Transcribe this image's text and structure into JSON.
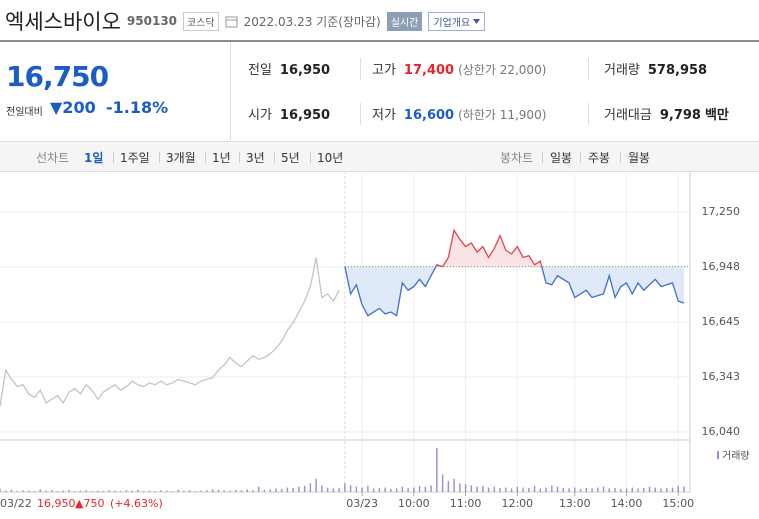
{
  "header": {
    "name": "엑세스바이오",
    "code": "950130",
    "market": "코스닥",
    "date": "2022.03.23 기준(장마감)",
    "realtime": "실시간",
    "dropdown": "기업개요"
  },
  "quote": {
    "price": "16,750",
    "change_label": "전일대비",
    "change": "▼200",
    "rate": "-1.18%"
  },
  "stats": [
    [
      {
        "label": "전일",
        "value": "16,950"
      },
      {
        "label": "고가",
        "value": "17,400",
        "note": "(상한가 22,000)"
      },
      {
        "label": "거래량",
        "value": "578,958"
      }
    ],
    [
      {
        "label": "시가",
        "value": "16,950"
      },
      {
        "label": "저가",
        "value": "16,600",
        "note": "(하한가 11,900)"
      },
      {
        "label": "거래대금",
        "value": "9,798",
        "unit": "백만"
      }
    ]
  ],
  "tabs": {
    "line_label": "선차트",
    "periods": [
      "1일",
      "1주일",
      "3개월",
      "1년",
      "3년",
      "5년",
      "10년"
    ],
    "selected": 0,
    "candle_label": "봉차트",
    "candles": [
      "일봉",
      "주봉",
      "월봉"
    ]
  },
  "footer": {
    "date": "03/22",
    "price": "16,950",
    "change": "▲750",
    "rate": "(+4.63%)"
  },
  "chart_data": {
    "type": "line",
    "categories": [
      null,
      null,
      null,
      null,
      null,
      null,
      null,
      null,
      null,
      null,
      null,
      null,
      null,
      null,
      null,
      null,
      null,
      null,
      null,
      null,
      null,
      null,
      null,
      null,
      null,
      null,
      null,
      null,
      null,
      null,
      null,
      null,
      null,
      null,
      null,
      null,
      null,
      null,
      null,
      null,
      null,
      null,
      null,
      null,
      null,
      null,
      null,
      null,
      null,
      null,
      null,
      null,
      null,
      null,
      null,
      null,
      null,
      null,
      null,
      null,
      null,
      null,
      null,
      "03/23",
      null,
      null,
      null,
      null,
      null,
      null,
      null,
      null,
      "10:00",
      null,
      null,
      null,
      null,
      null,
      null,
      null,
      null,
      "11:00",
      null,
      null,
      null,
      null,
      null,
      null,
      null,
      null,
      "12:00",
      null,
      null,
      null,
      null,
      null,
      null,
      null,
      null,
      null,
      "13:00",
      null,
      null,
      null,
      null,
      null,
      null,
      null,
      null,
      "14:00",
      null,
      null,
      null,
      null,
      null,
      null,
      null,
      null,
      "15:00",
      null
    ],
    "series": [
      {
        "color": "#c4c4c4",
        "values": [
          16180,
          16380,
          16330,
          16290,
          16300,
          16250,
          16230,
          16270,
          16200,
          16220,
          16240,
          16200,
          16260,
          16280,
          16250,
          16300,
          16270,
          16220,
          16260,
          16280,
          16300,
          16270,
          16290,
          16320,
          16300,
          16290,
          16310,
          16300,
          16320,
          16300,
          16310,
          16330,
          16320,
          16310,
          16300,
          16320,
          16330,
          16340,
          16380,
          16410,
          16450,
          16420,
          16400,
          16430,
          16460,
          16440,
          16450,
          16470,
          16500,
          16540,
          16600,
          16640,
          16700,
          16760,
          16840,
          17000,
          16780,
          16800,
          16760,
          16820,
          null,
          null,
          null,
          null,
          null,
          null,
          null,
          null,
          null,
          null,
          null,
          null,
          null,
          null,
          null,
          null,
          null,
          null,
          null,
          null,
          null,
          null,
          null,
          null,
          null,
          null,
          null,
          null,
          null,
          null,
          null,
          null,
          null,
          null,
          null,
          null,
          null,
          null,
          null,
          null,
          null,
          null,
          null,
          null,
          null,
          null,
          null,
          null,
          null,
          null,
          null,
          null,
          null,
          null,
          null,
          null,
          null,
          null,
          null,
          null
        ]
      },
      {
        "color": "#3c6fd1",
        "up_color": "#e8424c",
        "up_fill": "#fbe4e7",
        "down_fill": "#dfe9f8",
        "values": [
          null,
          null,
          null,
          null,
          null,
          null,
          null,
          null,
          null,
          null,
          null,
          null,
          null,
          null,
          null,
          null,
          null,
          null,
          null,
          null,
          null,
          null,
          null,
          null,
          null,
          null,
          null,
          null,
          null,
          null,
          null,
          null,
          null,
          null,
          null,
          null,
          null,
          null,
          null,
          null,
          null,
          null,
          null,
          null,
          null,
          null,
          null,
          null,
          null,
          null,
          null,
          null,
          null,
          null,
          null,
          null,
          null,
          null,
          null,
          null,
          16950,
          16800,
          16850,
          16740,
          16680,
          16700,
          16720,
          16690,
          16700,
          16680,
          16860,
          16820,
          16840,
          16880,
          16840,
          16900,
          16960,
          16950,
          17000,
          17150,
          17100,
          17060,
          17080,
          17030,
          17060,
          17000,
          17050,
          17120,
          17040,
          17020,
          17060,
          17000,
          17010,
          16960,
          16980,
          16860,
          16850,
          16900,
          16880,
          16860,
          16780,
          16800,
          16820,
          16780,
          16790,
          16800,
          16900,
          16780,
          16840,
          16860,
          16800,
          16860,
          16820,
          16850,
          16880,
          16840,
          16850,
          16860,
          16760,
          16750
        ]
      }
    ],
    "reference": 16950,
    "volume": {
      "label": "거래량",
      "color": "#9a8fc8",
      "values": [
        8,
        3,
        5,
        2,
        4,
        3,
        2,
        6,
        3,
        4,
        2,
        3,
        5,
        2,
        3,
        4,
        2,
        3,
        2,
        4,
        3,
        2,
        4,
        3,
        5,
        2,
        3,
        2,
        4,
        3,
        2,
        5,
        3,
        4,
        2,
        3,
        4,
        6,
        5,
        4,
        3,
        5,
        4,
        6,
        4,
        12,
        5,
        6,
        8,
        7,
        10,
        9,
        12,
        14,
        20,
        30,
        15,
        10,
        8,
        9,
        20,
        15,
        12,
        10,
        14,
        8,
        9,
        10,
        7,
        8,
        12,
        9,
        10,
        14,
        12,
        15,
        100,
        40,
        25,
        30,
        20,
        18,
        15,
        12,
        14,
        10,
        12,
        9,
        10,
        8,
        12,
        10,
        9,
        14,
        8,
        10,
        15,
        12,
        9,
        8,
        10,
        7,
        9,
        8,
        10,
        12,
        8,
        9,
        7,
        8,
        10,
        8,
        9,
        12,
        10,
        8,
        9,
        10,
        14,
        12
      ]
    },
    "ylim": [
      16000,
      17450
    ],
    "yticks": [
      {
        "value": 16040,
        "label": "16,040"
      },
      {
        "value": 16343,
        "label": "16,343"
      },
      {
        "value": 16645,
        "label": "16,645"
      },
      {
        "value": 16948,
        "label": "16,948"
      },
      {
        "value": 17250,
        "label": "17,250"
      }
    ],
    "grid": true
  }
}
